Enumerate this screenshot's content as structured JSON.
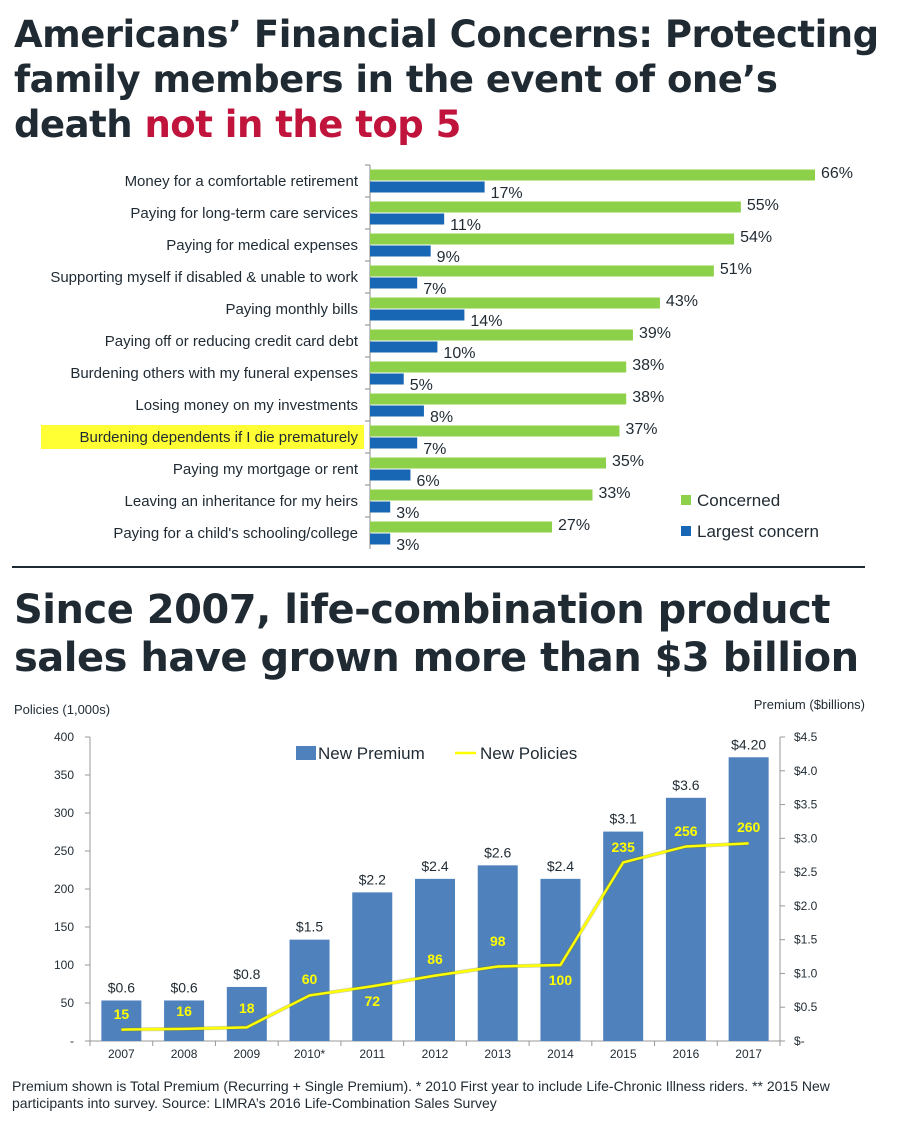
{
  "title1": {
    "part1": "Americans’ Financial Concerns: Protecting family members in the event of one’s death ",
    "highlight": "not in the top 5"
  },
  "title2": "Since 2007, life-combination product sales have grown more than $3 billion",
  "colors": {
    "concerned": "#8dd14a",
    "largest": "#1767b5",
    "premium": "#4f81bd",
    "policies": "#ffff00",
    "highlight": "#ffff33",
    "accent_red": "#c0143c"
  },
  "chart_data": [
    {
      "type": "bar",
      "orientation": "horizontal",
      "title": "Americans’ Financial Concerns",
      "categories": [
        "Money for a comfortable retirement",
        "Paying for long-term care services",
        "Paying for medical expenses",
        "Supporting myself if disabled & unable to work",
        "Paying monthly bills",
        "Paying off or reducing credit card debt",
        "Burdening others with my funeral expenses",
        "Losing money on my investments",
        "Burdening dependents if I die prematurely",
        "Paying my mortgage or rent",
        "Leaving an inheritance for my heirs",
        "Paying for a child's schooling/college"
      ],
      "highlighted_category": "Burdening dependents if I die prematurely",
      "series": [
        {
          "name": "Concerned",
          "values": [
            66,
            55,
            54,
            51,
            43,
            39,
            38,
            38,
            37,
            35,
            33,
            27
          ],
          "labels": [
            "66%",
            "55%",
            "54%",
            "51%",
            "43%",
            "39%",
            "38%",
            "38%",
            "37%",
            "35%",
            "33%",
            "27%"
          ]
        },
        {
          "name": "Largest concern",
          "values": [
            17,
            11,
            9,
            7,
            14,
            10,
            5,
            8,
            7,
            6,
            3,
            3
          ],
          "labels": [
            "17%",
            "11%",
            "9%",
            "7%",
            "14%",
            "10%",
            "5%",
            "8%",
            "7%",
            "6%",
            "3%",
            "3%"
          ]
        }
      ],
      "xlim": [
        0,
        66
      ],
      "legend": "bottom-right"
    },
    {
      "type": "bar",
      "secondary_type": "line",
      "categories": [
        "2007",
        "2008",
        "2009",
        "2010*",
        "2011",
        "2012",
        "2013",
        "2014",
        "2015",
        "2016",
        "2017"
      ],
      "series": [
        {
          "name": "New Premium",
          "axis": "right",
          "values": [
            0.6,
            0.6,
            0.8,
            1.5,
            2.2,
            2.4,
            2.6,
            2.4,
            3.1,
            3.6,
            4.2
          ],
          "labels": [
            "$0.6",
            "$0.6",
            "$0.8",
            "$1.5",
            "$2.2",
            "$2.4",
            "$2.6",
            "$2.4",
            "$3.1",
            "$3.6",
            "$4.20"
          ]
        },
        {
          "name": "New Policies",
          "axis": "left",
          "values": [
            15,
            16,
            18,
            60,
            72,
            86,
            98,
            100,
            235,
            256,
            260
          ],
          "labels": [
            "15",
            "16",
            "18",
            "60",
            "72",
            "86",
            "98",
            "100",
            "235",
            "256",
            "260"
          ]
        }
      ],
      "ylabel": "Policies (1,000s)",
      "y2label": "Premium ($billions)",
      "ylim": [
        0,
        400
      ],
      "y2lim": [
        0,
        4.5
      ],
      "yticks": [
        "-",
        "50",
        "100",
        "150",
        "200",
        "250",
        "300",
        "350",
        "400"
      ],
      "y2ticks": [
        "$-",
        "$0.5",
        "$1.0",
        "$1.5",
        "$2.0",
        "$2.5",
        "$3.0",
        "$3.5",
        "$4.0",
        "$4.5"
      ],
      "legend": "top-center"
    }
  ],
  "footnote": "Premium shown is Total Premium (Recurring + Single Premium). * 2010 First year to include Life-Chronic Illness riders. ** 2015 New participants into survey. Source:  LIMRA’s 2016 Life-Combination Sales Survey"
}
